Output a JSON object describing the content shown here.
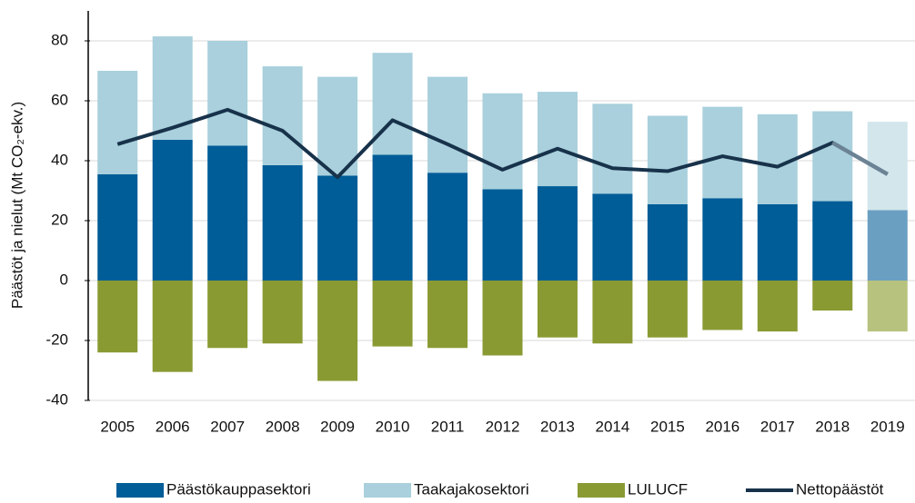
{
  "chart_data": {
    "type": "stacked_bar_line",
    "y_axis_label": "Päästöt ja nielut (Mt CO₂-ekv.)",
    "categories": [
      "2005",
      "2006",
      "2007",
      "2008",
      "2009",
      "2010",
      "2011",
      "2012",
      "2013",
      "2014",
      "2015",
      "2016",
      "2017",
      "2018",
      "2019"
    ],
    "series": [
      {
        "name": "Päästökauppasektori",
        "type": "bar",
        "color": "#005d97",
        "colors": [
          "#005d97",
          "#005d97",
          "#005d97",
          "#005d97",
          "#005d97",
          "#005d97",
          "#005d97",
          "#005d97",
          "#005d97",
          "#005d97",
          "#005d97",
          "#005d97",
          "#005d97",
          "#005d97",
          "#6a9fc2"
        ],
        "values": [
          35.5,
          47,
          45,
          38.5,
          35,
          42,
          36,
          30.5,
          31.5,
          29,
          25.5,
          27.5,
          25.5,
          26.5,
          23.5
        ]
      },
      {
        "name": "Taakajakosektori",
        "type": "bar",
        "color": "#a9d0dc",
        "colors": [
          "#a9d0dc",
          "#a9d0dc",
          "#a9d0dc",
          "#a9d0dc",
          "#a9d0dc",
          "#a9d0dc",
          "#a9d0dc",
          "#a9d0dc",
          "#a9d0dc",
          "#a9d0dc",
          "#a9d0dc",
          "#a9d0dc",
          "#a9d0dc",
          "#a9d0dc",
          "#d2e6ec"
        ],
        "values": [
          34.5,
          34.5,
          35,
          33,
          33,
          34,
          32,
          32,
          31.5,
          30,
          29.5,
          30.5,
          30,
          30,
          29.5
        ]
      },
      {
        "name": "LULUCF",
        "type": "bar",
        "color": "#8a9a33",
        "colors": [
          "#8a9a33",
          "#8a9a33",
          "#8a9a33",
          "#8a9a33",
          "#8a9a33",
          "#8a9a33",
          "#8a9a33",
          "#8a9a33",
          "#8a9a33",
          "#8a9a33",
          "#8a9a33",
          "#8a9a33",
          "#8a9a33",
          "#8a9a33",
          "#b7c27e"
        ],
        "values": [
          -24,
          -30.5,
          -22.5,
          -21,
          -33.5,
          -22,
          -22.5,
          -25,
          -19,
          -21,
          -19,
          -16.5,
          -17,
          -10,
          -17
        ]
      },
      {
        "name": "Nettopäästöt",
        "type": "line",
        "color": "#17324a",
        "colors": [
          "#17324a",
          "#17324a",
          "#17324a",
          "#17324a",
          "#17324a",
          "#17324a",
          "#17324a",
          "#17324a",
          "#17324a",
          "#17324a",
          "#17324a",
          "#17324a",
          "#17324a",
          "#17324a",
          "#6b8394"
        ],
        "values": [
          45.5,
          51,
          57,
          50,
          34.5,
          53.5,
          45.5,
          37,
          44,
          37.5,
          36.5,
          41.5,
          38,
          46,
          35.5
        ]
      }
    ],
    "ylim": [
      -40,
      90
    ],
    "yticks": [
      -40,
      -20,
      0,
      20,
      40,
      60,
      80
    ],
    "grid": true,
    "legend": "bottom"
  }
}
